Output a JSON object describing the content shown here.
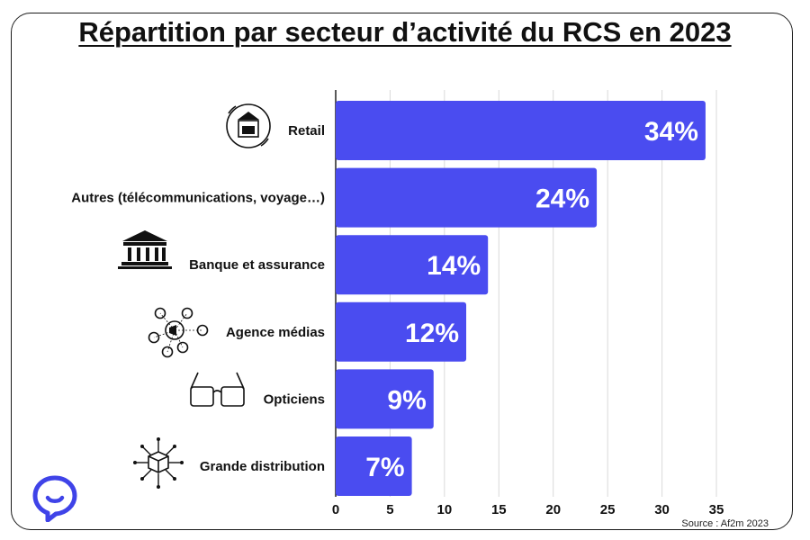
{
  "chart_data": {
    "type": "bar",
    "orientation": "horizontal",
    "title": "Répartition par secteur d’activité du RCS en 2023",
    "categories": [
      "Retail",
      "Autres (télécommunications, voyage…)",
      "Banque et assurance",
      "Agence médias",
      "Opticiens",
      "Grande distribution"
    ],
    "values": [
      34,
      24,
      14,
      12,
      9,
      7
    ],
    "value_labels": [
      "34%",
      "24%",
      "14%",
      "12%",
      "9%",
      "7%"
    ],
    "icons": [
      "store-icon",
      "",
      "bank-icon",
      "social-media-icon",
      "glasses-icon",
      "box-distribution-icon"
    ],
    "xlim": [
      0,
      35
    ],
    "xticks": [
      0,
      5,
      10,
      15,
      20,
      25,
      30,
      35
    ],
    "grid": true,
    "bar_color": "#4a4cf0",
    "source": "Source : Af2m 2023"
  },
  "colors": {
    "bar": "#4a4cf0",
    "logo": "#3f43e8"
  }
}
